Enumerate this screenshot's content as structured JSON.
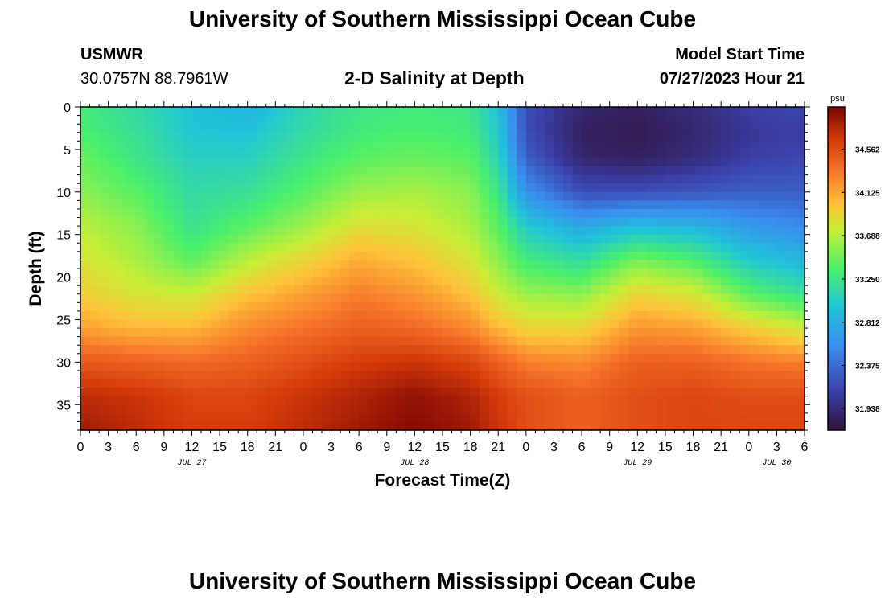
{
  "header": {
    "title": "University of Southern Mississippi Ocean Cube",
    "station": "USMWR",
    "coords": "30.0757N  88.7961W",
    "subtitle": "2-D Salinity at Depth",
    "model_start_label": "Model Start Time",
    "model_start_value": "07/27/2023 Hour 21"
  },
  "footer": {
    "title": "University of Southern Mississippi Ocean Cube"
  },
  "chart_data": {
    "type": "heatmap",
    "title": "2-D Salinity at Depth",
    "xlabel": "Forecast Time(Z)",
    "ylabel": "Depth (ft)",
    "x_hours_range": [
      0,
      78
    ],
    "x_tick_step_hours": 3,
    "x_tick_labels": [
      "0",
      "3",
      "6",
      "9",
      "12",
      "15",
      "18",
      "21",
      "0",
      "3",
      "6",
      "9",
      "12",
      "15",
      "18",
      "21",
      "0",
      "3",
      "6",
      "9",
      "12",
      "15",
      "18",
      "21",
      "0",
      "3",
      "6"
    ],
    "date_labels": [
      {
        "label": "JUL 27",
        "hour": 12
      },
      {
        "label": "JUL 28",
        "hour": 36
      },
      {
        "label": "JUL 29",
        "hour": 60
      },
      {
        "label": "JUL 30",
        "hour": 75
      }
    ],
    "ylim": [
      0,
      38
    ],
    "y_ticks": [
      0,
      5,
      10,
      15,
      20,
      25,
      30,
      35
    ],
    "colorbar": {
      "unit": "psu",
      "min": 31.72,
      "max": 34.99,
      "ticks": [
        34.562,
        34.125,
        33.688,
        33.25,
        32.812,
        32.375,
        31.938
      ]
    },
    "profiles": {
      "depths": [
        0,
        3,
        6,
        10,
        14,
        18,
        22,
        26,
        30,
        34,
        38
      ],
      "samples": [
        {
          "hour": 0,
          "values": [
            33.3,
            33.35,
            33.45,
            33.55,
            33.7,
            33.82,
            33.95,
            34.15,
            34.5,
            34.75,
            34.85
          ]
        },
        {
          "hour": 6,
          "values": [
            33.15,
            33.2,
            33.25,
            33.4,
            33.55,
            33.65,
            33.8,
            34.05,
            34.45,
            34.7,
            34.75
          ]
        },
        {
          "hour": 12,
          "values": [
            32.95,
            32.98,
            33.05,
            33.15,
            33.22,
            33.4,
            33.75,
            34.05,
            34.4,
            34.6,
            34.65
          ]
        },
        {
          "hour": 18,
          "values": [
            32.85,
            32.95,
            33.05,
            33.2,
            33.4,
            33.7,
            34.0,
            34.25,
            34.45,
            34.6,
            34.65
          ]
        },
        {
          "hour": 24,
          "values": [
            33.1,
            33.15,
            33.25,
            33.4,
            33.6,
            33.9,
            34.15,
            34.35,
            34.55,
            34.7,
            34.75
          ]
        },
        {
          "hour": 30,
          "values": [
            33.25,
            33.3,
            33.4,
            33.6,
            33.85,
            34.1,
            34.3,
            34.45,
            34.65,
            34.8,
            34.85
          ]
        },
        {
          "hour": 36,
          "values": [
            33.3,
            33.35,
            33.45,
            33.65,
            33.8,
            34.0,
            34.2,
            34.4,
            34.7,
            34.9,
            34.95
          ]
        },
        {
          "hour": 42,
          "values": [
            33.25,
            33.3,
            33.4,
            33.55,
            33.65,
            33.8,
            34.0,
            34.25,
            34.6,
            34.8,
            34.85
          ]
        },
        {
          "hour": 45,
          "values": [
            32.95,
            33.0,
            33.1,
            33.25,
            33.4,
            33.55,
            33.75,
            34.05,
            34.45,
            34.65,
            34.7
          ]
        },
        {
          "hour": 48,
          "values": [
            32.2,
            32.2,
            32.3,
            32.6,
            33.0,
            33.3,
            33.6,
            33.9,
            34.3,
            34.55,
            34.55
          ]
        },
        {
          "hour": 54,
          "values": [
            31.9,
            31.85,
            31.9,
            32.2,
            32.75,
            33.15,
            33.55,
            33.9,
            34.25,
            34.45,
            34.45
          ]
        },
        {
          "hour": 60,
          "values": [
            31.85,
            31.8,
            31.85,
            32.2,
            32.9,
            33.5,
            33.9,
            34.2,
            34.45,
            34.55,
            34.55
          ]
        },
        {
          "hour": 66,
          "values": [
            31.95,
            31.9,
            31.95,
            32.25,
            32.85,
            33.35,
            33.8,
            34.15,
            34.45,
            34.6,
            34.6
          ]
        },
        {
          "hour": 72,
          "values": [
            32.1,
            32.05,
            32.1,
            32.3,
            32.65,
            33.0,
            33.4,
            33.95,
            34.35,
            34.55,
            34.6
          ]
        },
        {
          "hour": 78,
          "values": [
            32.15,
            32.1,
            32.15,
            32.3,
            32.55,
            32.85,
            33.2,
            33.75,
            34.3,
            34.55,
            34.6
          ]
        }
      ]
    }
  }
}
